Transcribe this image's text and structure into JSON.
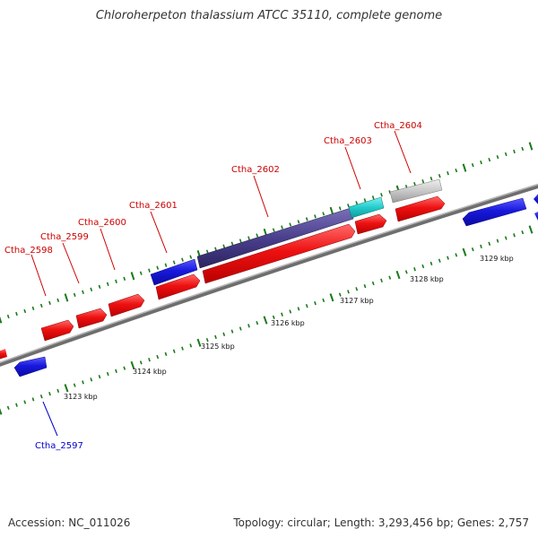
{
  "title": "Chloroherpeton thalassium ATCC 35110, complete genome",
  "accession": "Accession: NC_011026",
  "summary": "Topology: circular; Length: 3,293,456 bp; Genes: 2,757",
  "colors": {
    "forward_strand": "#ee1111",
    "reverse_strand": "#1818dd",
    "highlight_dark": "#4a3f8c",
    "highlight_cyan": "#22cccc",
    "highlight_gray": "#c8c8c8",
    "backbone": "#888888",
    "ticks": "#1a7a1a",
    "label_forward": "#cc0000",
    "label_reverse": "#0000cc"
  },
  "scale": {
    "unit": "kbp",
    "labels": [
      "3123 kbp",
      "3124 kbp",
      "3125 kbp",
      "3126 kbp",
      "3127 kbp",
      "3128 kbp",
      "3129 kbp"
    ]
  },
  "genes": [
    {
      "id": "Ctha_2597",
      "strand": "reverse",
      "color": "reverse",
      "labeled": true
    },
    {
      "id": "Ctha_2598",
      "strand": "forward",
      "color": "forward",
      "labeled": true
    },
    {
      "id": "Ctha_2599",
      "strand": "forward",
      "color": "forward",
      "labeled": true
    },
    {
      "id": "Ctha_2600",
      "strand": "forward",
      "color": "forward",
      "labeled": true
    },
    {
      "id": "Ctha_2601",
      "strand": "forward",
      "color": "forward",
      "labeled": true
    },
    {
      "id": "Ctha_2602",
      "strand": "forward",
      "color": "forward",
      "labeled": true
    },
    {
      "id": "Ctha_2603",
      "strand": "forward",
      "color": "forward",
      "labeled": true
    },
    {
      "id": "Ctha_2604",
      "strand": "forward",
      "color": "forward",
      "labeled": true
    }
  ]
}
